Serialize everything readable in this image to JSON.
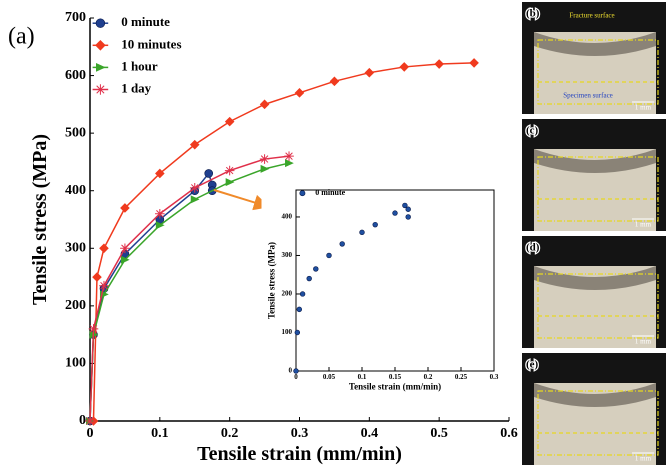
{
  "chart_data": [
    {
      "type": "line",
      "panel_label": "(a)",
      "x_label": "Tensile strain (mm/min)",
      "y_label": "Tensile stress (MPa)",
      "xlim": [
        0,
        0.6
      ],
      "xticks": [
        0,
        0.1,
        0.2,
        0.3,
        0.4,
        0.5,
        0.6
      ],
      "ylim": [
        0,
        700
      ],
      "yticks": [
        0,
        100,
        200,
        300,
        400,
        500,
        600,
        700
      ],
      "legend": "top-left",
      "series": [
        {
          "name": "0 minute",
          "color": "#1f3f8f",
          "marker": "circle",
          "x": [
            0,
            0.005,
            0.02,
            0.05,
            0.1,
            0.15,
            0.17,
            0.175,
            0.175
          ],
          "values": [
            0,
            150,
            230,
            290,
            350,
            400,
            430,
            410,
            400
          ]
        },
        {
          "name": "10 minutes",
          "color": "#f03a1e",
          "marker": "diamond",
          "x": [
            0.005,
            0.01,
            0.02,
            0.05,
            0.1,
            0.15,
            0.2,
            0.25,
            0.3,
            0.35,
            0.4,
            0.45,
            0.5,
            0.55
          ],
          "values": [
            0,
            250,
            300,
            370,
            430,
            480,
            520,
            550,
            570,
            590,
            605,
            615,
            620,
            622
          ]
        },
        {
          "name": "1 hour",
          "color": "#3aa52a",
          "marker": "triangle",
          "x": [
            0,
            0.005,
            0.02,
            0.05,
            0.1,
            0.15,
            0.2,
            0.25,
            0.285
          ],
          "values": [
            0,
            150,
            220,
            280,
            340,
            385,
            415,
            438,
            448
          ]
        },
        {
          "name": "1 day",
          "color": "#e0304a",
          "marker": "star",
          "x": [
            0,
            0.005,
            0.02,
            0.05,
            0.1,
            0.15,
            0.2,
            0.25,
            0.285
          ],
          "values": [
            0,
            160,
            235,
            300,
            360,
            405,
            435,
            455,
            460
          ]
        }
      ]
    },
    {
      "type": "scatter",
      "x_label": "Tensile strain (mm/min)",
      "y_label": "Tensile stress (MPa)",
      "xlim": [
        0,
        0.3
      ],
      "xticks": [
        0,
        0.05,
        0.1,
        0.15,
        0.2,
        0.25,
        0.3
      ],
      "ylim": [
        0,
        470
      ],
      "yticks": [
        0,
        100,
        200,
        300,
        400
      ],
      "legend": "top-left",
      "series": [
        {
          "name": "0 minute",
          "color": "#1f4fa0",
          "marker": "circle",
          "x": [
            0,
            0.002,
            0.005,
            0.01,
            0.02,
            0.03,
            0.05,
            0.07,
            0.1,
            0.12,
            0.15,
            0.165,
            0.17,
            0.17
          ],
          "values": [
            0,
            100,
            160,
            200,
            240,
            265,
            300,
            330,
            360,
            380,
            410,
            430,
            420,
            400
          ]
        }
      ]
    }
  ],
  "photos": [
    {
      "label": "(b)",
      "annotations": [
        "Fracture surface",
        "Specimen surface"
      ],
      "scale_bar": "1 mm"
    },
    {
      "label": "(c)",
      "scale_bar": "1 mm"
    },
    {
      "label": "(d)",
      "scale_bar": "1 mm"
    },
    {
      "label": "(e)",
      "scale_bar": "1 mm"
    }
  ]
}
